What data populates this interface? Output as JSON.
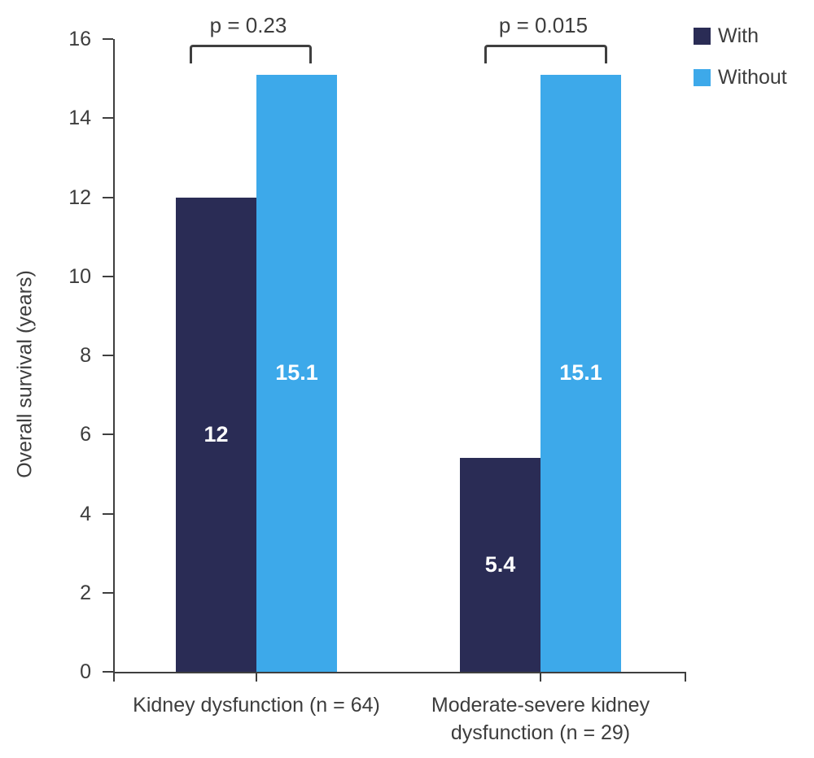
{
  "chart_data": {
    "type": "bar",
    "title": "",
    "xlabel": "",
    "ylabel": "Overall survival (years)",
    "ylim": [
      0,
      16
    ],
    "yticks": [
      0,
      2,
      4,
      6,
      8,
      10,
      12,
      14,
      16
    ],
    "grid": false,
    "legend_position": "top-right",
    "categories": [
      "Kidney dysfunction (n = 64)",
      "Moderate-severe kidney dysfunction (n = 29)"
    ],
    "series": [
      {
        "name": "With",
        "color": "#2a2c55",
        "values": [
          12,
          5.4
        ],
        "labels": [
          "12",
          "5.4"
        ]
      },
      {
        "name": "Without",
        "color": "#3da9ea",
        "values": [
          15.1,
          15.1
        ],
        "labels": [
          "15.1",
          "15.1"
        ]
      }
    ],
    "annotations": [
      {
        "text": "p = 0.23",
        "group": 0
      },
      {
        "text": "p = 0.015",
        "group": 1
      }
    ]
  },
  "colors": {
    "axis": "#3f3f3f",
    "text": "#3d3d3d",
    "bar_label": "#ffffff",
    "background": "#ffffff"
  }
}
